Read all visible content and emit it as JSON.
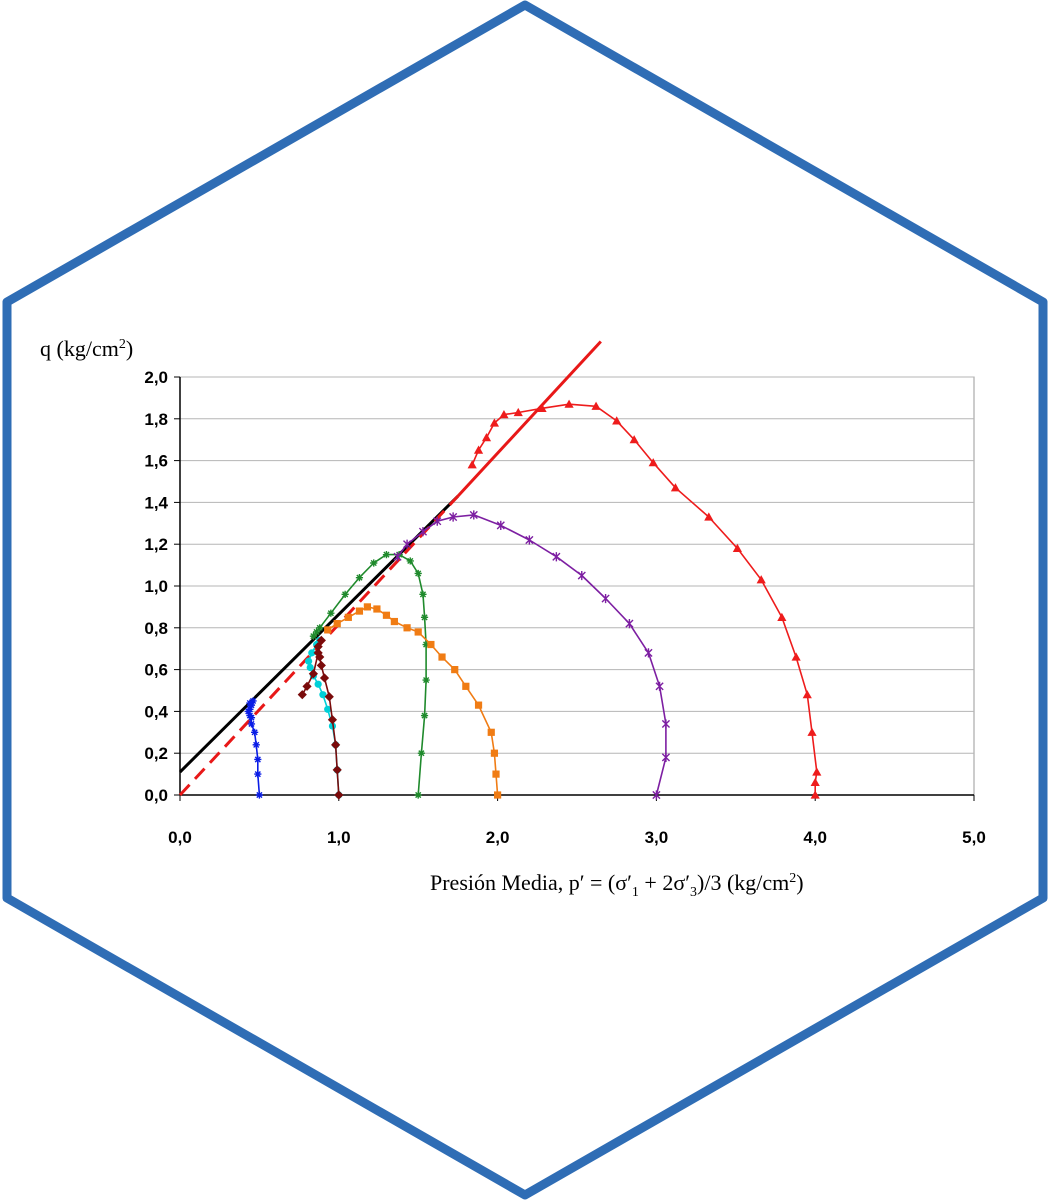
{
  "chart_data": {
    "type": "line",
    "ylabel": "q (kg/cm2)",
    "xlabel": "Presión Media, p′ = (σ′1 + 2σ′3)/3 (kg/cm2)",
    "xlim": [
      0,
      5
    ],
    "ylim": [
      0,
      2
    ],
    "xticks": [
      "0,0",
      "1,0",
      "2,0",
      "3,0",
      "4,0",
      "5,0"
    ],
    "yticks": [
      "0,0",
      "0,2",
      "0,4",
      "0,6",
      "0,8",
      "1,0",
      "1,2",
      "1,4",
      "1,6",
      "1,8",
      "2,0"
    ],
    "grid": "horizontal",
    "frame_color": "#2f6db5",
    "series": [
      {
        "color": "#0a1de6",
        "marker": "star",
        "points": [
          [
            0.5,
            0.0
          ],
          [
            0.49,
            0.1
          ],
          [
            0.49,
            0.17
          ],
          [
            0.48,
            0.24
          ],
          [
            0.47,
            0.3
          ],
          [
            0.45,
            0.34
          ],
          [
            0.44,
            0.38
          ],
          [
            0.44,
            0.41
          ],
          [
            0.45,
            0.43
          ],
          [
            0.46,
            0.45
          ],
          [
            0.44,
            0.44
          ],
          [
            0.43,
            0.4
          ],
          [
            0.45,
            0.37
          ]
        ]
      },
      {
        "color": "#00d0d8",
        "marker": "circle",
        "points": [
          [
            1.0,
            0.0
          ],
          [
            0.99,
            0.12
          ],
          [
            0.98,
            0.24
          ],
          [
            0.96,
            0.33
          ],
          [
            0.93,
            0.41
          ],
          [
            0.9,
            0.48
          ],
          [
            0.87,
            0.53
          ],
          [
            0.84,
            0.57
          ],
          [
            0.82,
            0.61
          ],
          [
            0.81,
            0.64
          ],
          [
            0.83,
            0.68
          ],
          [
            0.86,
            0.72
          ],
          [
            0.88,
            0.74
          ]
        ]
      },
      {
        "color": "#7a0b0b",
        "marker": "diamond",
        "points": [
          [
            1.0,
            0.0
          ],
          [
            0.99,
            0.12
          ],
          [
            0.98,
            0.24
          ],
          [
            0.96,
            0.36
          ],
          [
            0.94,
            0.47
          ],
          [
            0.91,
            0.56
          ],
          [
            0.89,
            0.62
          ],
          [
            0.88,
            0.66
          ],
          [
            0.87,
            0.71
          ],
          [
            0.89,
            0.74
          ],
          [
            0.87,
            0.68
          ],
          [
            0.84,
            0.58
          ],
          [
            0.8,
            0.52
          ],
          [
            0.77,
            0.48
          ]
        ]
      },
      {
        "color": "#1f8a2c",
        "marker": "star",
        "points": [
          [
            1.5,
            0.0
          ],
          [
            1.52,
            0.2
          ],
          [
            1.54,
            0.38
          ],
          [
            1.55,
            0.55
          ],
          [
            1.55,
            0.72
          ],
          [
            1.54,
            0.85
          ],
          [
            1.53,
            0.96
          ],
          [
            1.5,
            1.06
          ],
          [
            1.45,
            1.12
          ],
          [
            1.38,
            1.15
          ],
          [
            1.3,
            1.15
          ],
          [
            1.22,
            1.11
          ],
          [
            1.13,
            1.04
          ],
          [
            1.04,
            0.96
          ],
          [
            0.95,
            0.87
          ],
          [
            0.88,
            0.8
          ],
          [
            0.84,
            0.76
          ],
          [
            0.86,
            0.78
          ]
        ]
      },
      {
        "color": "#f07c14",
        "marker": "square",
        "points": [
          [
            2.0,
            0.0
          ],
          [
            1.99,
            0.1
          ],
          [
            1.98,
            0.2
          ],
          [
            1.96,
            0.3
          ],
          [
            1.88,
            0.43
          ],
          [
            1.8,
            0.52
          ],
          [
            1.73,
            0.6
          ],
          [
            1.65,
            0.66
          ],
          [
            1.58,
            0.72
          ],
          [
            1.5,
            0.78
          ],
          [
            1.43,
            0.8
          ],
          [
            1.35,
            0.83
          ],
          [
            1.3,
            0.86
          ],
          [
            1.24,
            0.89
          ],
          [
            1.18,
            0.9
          ],
          [
            1.13,
            0.88
          ],
          [
            1.06,
            0.85
          ],
          [
            0.99,
            0.82
          ],
          [
            0.93,
            0.79
          ]
        ]
      },
      {
        "color": "#7d1fa2",
        "marker": "xstar",
        "points": [
          [
            3.0,
            0.0
          ],
          [
            3.06,
            0.18
          ],
          [
            3.06,
            0.34
          ],
          [
            3.02,
            0.52
          ],
          [
            2.95,
            0.68
          ],
          [
            2.83,
            0.82
          ],
          [
            2.68,
            0.94
          ],
          [
            2.53,
            1.05
          ],
          [
            2.37,
            1.14
          ],
          [
            2.2,
            1.22
          ],
          [
            2.02,
            1.29
          ],
          [
            1.85,
            1.34
          ],
          [
            1.72,
            1.33
          ],
          [
            1.62,
            1.31
          ],
          [
            1.53,
            1.26
          ],
          [
            1.43,
            1.2
          ],
          [
            1.37,
            1.14
          ]
        ]
      },
      {
        "color": "#ee1c1c",
        "marker": "triangle",
        "points": [
          [
            4.0,
            0.0
          ],
          [
            4.0,
            0.06
          ],
          [
            4.01,
            0.11
          ],
          [
            3.98,
            0.3
          ],
          [
            3.95,
            0.48
          ],
          [
            3.88,
            0.66
          ],
          [
            3.79,
            0.85
          ],
          [
            3.66,
            1.03
          ],
          [
            3.51,
            1.18
          ],
          [
            3.33,
            1.33
          ],
          [
            3.12,
            1.47
          ],
          [
            2.98,
            1.59
          ],
          [
            2.86,
            1.7
          ],
          [
            2.75,
            1.79
          ],
          [
            2.62,
            1.86
          ],
          [
            2.45,
            1.87
          ],
          [
            2.28,
            1.85
          ],
          [
            2.13,
            1.83
          ],
          [
            2.04,
            1.82
          ],
          [
            1.98,
            1.78
          ],
          [
            1.93,
            1.71
          ],
          [
            1.88,
            1.65
          ],
          [
            1.84,
            1.58
          ]
        ]
      }
    ],
    "reference_lines": [
      {
        "color": "#000000",
        "dash": "solid",
        "from": [
          0.0,
          0.11
        ],
        "to": [
          1.75,
          1.43
        ]
      },
      {
        "color": "#e81818",
        "dash": "solid",
        "from": [
          1.75,
          1.43
        ],
        "to": [
          2.65,
          2.17
        ]
      },
      {
        "color": "#e81818",
        "dash": "dashed",
        "from": [
          0.0,
          0.0
        ],
        "to": [
          1.75,
          1.43
        ]
      }
    ]
  }
}
